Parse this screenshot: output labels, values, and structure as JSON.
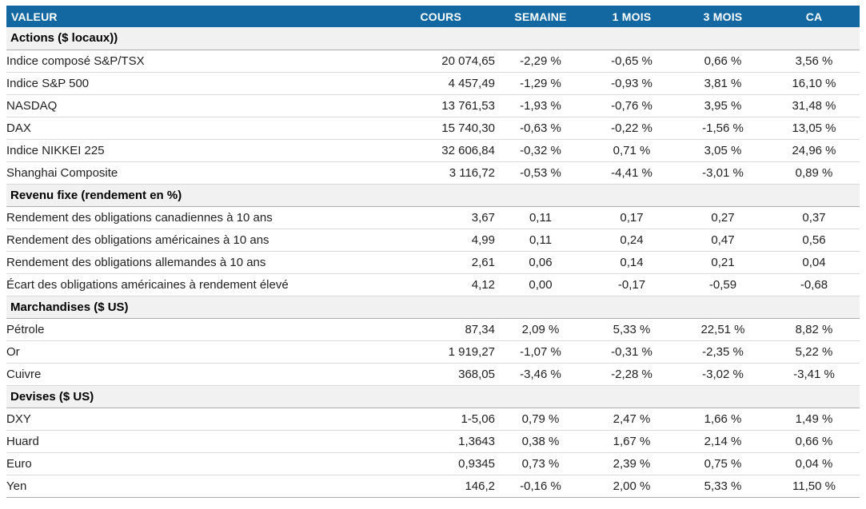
{
  "colors": {
    "header_bg": "#1368A2",
    "header_text": "#FFFFFF",
    "red": "#E02B20",
    "green": "#13A45E",
    "section_bg": "#F1F1F2",
    "text": "#1F1F1F"
  },
  "table": {
    "columns": [
      "VALEUR",
      "COURS",
      "SEMAINE",
      "1 MOIS",
      "3 MOIS",
      "CA"
    ],
    "sections": [
      {
        "title": "Actions ($ locaux))",
        "rows": [
          {
            "label": "Indice composé S&P/TSX",
            "cours": "20 074,65",
            "changes": [
              {
                "v": "-2,29 %",
                "c": "red"
              },
              {
                "v": "-0,65 %",
                "c": "red"
              },
              {
                "v": "0,66 %",
                "c": "green"
              },
              {
                "v": "3,56 %",
                "c": "green"
              }
            ]
          },
          {
            "label": "Indice S&P 500",
            "cours": "4 457,49",
            "changes": [
              {
                "v": "-1,29 %",
                "c": "red"
              },
              {
                "v": "-0,93 %",
                "c": "red"
              },
              {
                "v": "3,81 %",
                "c": "green"
              },
              {
                "v": "16,10 %",
                "c": "green"
              }
            ]
          },
          {
            "label": "NASDAQ",
            "cours": "13 761,53",
            "changes": [
              {
                "v": "-1,93 %",
                "c": "red"
              },
              {
                "v": "-0,76 %",
                "c": "red"
              },
              {
                "v": "3,95 %",
                "c": "green"
              },
              {
                "v": "31,48 %",
                "c": "green"
              }
            ]
          },
          {
            "label": "DAX",
            "cours": "15 740,30",
            "changes": [
              {
                "v": "-0,63 %",
                "c": "red"
              },
              {
                "v": "-0,22 %",
                "c": "red"
              },
              {
                "v": "-1,56 %",
                "c": "red"
              },
              {
                "v": "13,05 %",
                "c": "green"
              }
            ]
          },
          {
            "label": "Indice NIKKEI 225",
            "cours": "32 606,84",
            "changes": [
              {
                "v": "-0,32 %",
                "c": "red"
              },
              {
                "v": "0,71 %",
                "c": "green"
              },
              {
                "v": "3,05 %",
                "c": "green"
              },
              {
                "v": "24,96 %",
                "c": "green"
              }
            ]
          },
          {
            "label": "Shanghai Composite",
            "cours": "3 116,72",
            "changes": [
              {
                "v": "-0,53 %",
                "c": "red"
              },
              {
                "v": "-4,41 %",
                "c": "red"
              },
              {
                "v": "-3,01 %",
                "c": "red"
              },
              {
                "v": "0,89 %",
                "c": "green"
              }
            ]
          }
        ]
      },
      {
        "title": "Revenu fixe (rendement en %)",
        "rows": [
          {
            "label": "Rendement des obligations canadiennes à 10 ans",
            "cours": "3,67",
            "changes": [
              {
                "v": "0,11",
                "c": "red"
              },
              {
                "v": "0,17",
                "c": "red"
              },
              {
                "v": "0,27",
                "c": "red"
              },
              {
                "v": "0,37",
                "c": "red"
              }
            ]
          },
          {
            "label": "Rendement des obligations américaines à 10 ans",
            "cours": "4,99",
            "changes": [
              {
                "v": "0,11",
                "c": "red"
              },
              {
                "v": "0,24",
                "c": "red"
              },
              {
                "v": "0,47",
                "c": "red"
              },
              {
                "v": "0,56",
                "c": "red"
              }
            ]
          },
          {
            "label": "Rendement des obligations allemandes à 10 ans",
            "cours": "2,61",
            "changes": [
              {
                "v": "0,06",
                "c": "red"
              },
              {
                "v": "0,14",
                "c": "red"
              },
              {
                "v": "0,21",
                "c": "red"
              },
              {
                "v": "0,04",
                "c": "red"
              }
            ]
          },
          {
            "label": "Écart des obligations américaines à rendement élevé",
            "cours": "4,12",
            "changes": [
              {
                "v": "0,00",
                "c": "red"
              },
              {
                "v": "-0,17",
                "c": "green"
              },
              {
                "v": "-0,59",
                "c": "green"
              },
              {
                "v": "-0,68",
                "c": "green"
              }
            ]
          }
        ]
      },
      {
        "title": "Marchandises ($ US)",
        "rows": [
          {
            "label": "Pétrole",
            "cours": "87,34",
            "changes": [
              {
                "v": "2,09 %",
                "c": "green"
              },
              {
                "v": "5,33 %",
                "c": "green"
              },
              {
                "v": "22,51 %",
                "c": "green"
              },
              {
                "v": "8,82 %",
                "c": "green"
              }
            ]
          },
          {
            "label": "Or",
            "cours": "1 919,27",
            "changes": [
              {
                "v": "-1,07 %",
                "c": "red"
              },
              {
                "v": "-0,31 %",
                "c": "red"
              },
              {
                "v": "-2,35 %",
                "c": "red"
              },
              {
                "v": "5,22 %",
                "c": "green"
              }
            ]
          },
          {
            "label": "Cuivre",
            "cours": "368,05",
            "changes": [
              {
                "v": "-3,46 %",
                "c": "red"
              },
              {
                "v": "-2,28 %",
                "c": "red"
              },
              {
                "v": "-3,02 %",
                "c": "red"
              },
              {
                "v": "-3,41 %",
                "c": "red"
              }
            ]
          }
        ]
      },
      {
        "title": "Devises ($ US)",
        "rows": [
          {
            "label": "DXY",
            "cours": "1-5,06",
            "changes": [
              {
                "v": "0,79 %",
                "c": "green"
              },
              {
                "v": "2,47 %",
                "c": "green"
              },
              {
                "v": "1,66 %",
                "c": "green"
              },
              {
                "v": "1,49 %",
                "c": "green"
              }
            ]
          },
          {
            "label": "Huard",
            "cours": "1,3643",
            "changes": [
              {
                "v": "0,38 %",
                "c": "green"
              },
              {
                "v": "1,67 %",
                "c": "green"
              },
              {
                "v": "2,14 %",
                "c": "green"
              },
              {
                "v": "0,66 %",
                "c": "green"
              }
            ]
          },
          {
            "label": "Euro",
            "cours": "0,9345",
            "changes": [
              {
                "v": "0,73 %",
                "c": "green"
              },
              {
                "v": "2,39 %",
                "c": "green"
              },
              {
                "v": "0,75 %",
                "c": "green"
              },
              {
                "v": "0,04 %",
                "c": "green"
              }
            ]
          },
          {
            "label": "Yen",
            "cours": "146,2",
            "changes": [
              {
                "v": "-0,16 %",
                "c": "red"
              },
              {
                "v": "2,00 %",
                "c": "green"
              },
              {
                "v": "5,33 %",
                "c": "green"
              },
              {
                "v": "11,50 %",
                "c": "green"
              }
            ]
          }
        ]
      }
    ]
  }
}
